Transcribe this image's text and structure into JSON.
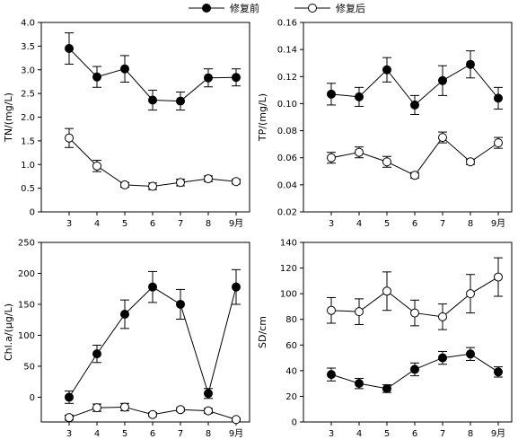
{
  "legend": {
    "placement": "top-center",
    "entries": [
      {
        "label": "修复前",
        "marker": "filled-circle"
      },
      {
        "label": "修复后",
        "marker": "open-circle"
      }
    ]
  },
  "chart_data": [
    {
      "type": "line",
      "panel": "top-left",
      "ylabel": "TN/(mg/L)",
      "xlabel": "",
      "x": [
        3,
        4,
        5,
        6,
        7,
        8,
        9
      ],
      "x_tick_labels": [
        "3",
        "4",
        "5",
        "6",
        "7",
        "8",
        "9月"
      ],
      "ylim": [
        0,
        4.0
      ],
      "y_ticks": [
        0,
        0.5,
        1.0,
        1.5,
        2.0,
        2.5,
        3.0,
        3.5,
        4.0
      ],
      "y_tick_labels": [
        "0",
        "0.5",
        "1.0",
        "1.5",
        "2.0",
        "2.5",
        "3.0",
        "3.5",
        "4.0"
      ],
      "grid": false,
      "series": [
        {
          "name": "修复前",
          "marker": "filled",
          "values": [
            3.45,
            2.85,
            3.02,
            2.36,
            2.34,
            2.83,
            2.84
          ],
          "errors": [
            0.33,
            0.22,
            0.28,
            0.21,
            0.19,
            0.19,
            0.18
          ]
        },
        {
          "name": "修复后",
          "marker": "open",
          "values": [
            1.56,
            0.97,
            0.57,
            0.54,
            0.62,
            0.7,
            0.64
          ],
          "errors": [
            0.2,
            0.12,
            0.05,
            0.07,
            0.07,
            0.06,
            0.05
          ]
        }
      ]
    },
    {
      "type": "line",
      "panel": "top-right",
      "ylabel": "TP/(mg/L)",
      "xlabel": "",
      "x": [
        3,
        4,
        5,
        6,
        7,
        8,
        9
      ],
      "x_tick_labels": [
        "3",
        "4",
        "5",
        "6",
        "7",
        "8",
        "9月"
      ],
      "ylim": [
        0.02,
        0.16
      ],
      "y_ticks": [
        0.02,
        0.04,
        0.06,
        0.08,
        0.1,
        0.12,
        0.14,
        0.16
      ],
      "y_tick_labels": [
        "0.02",
        "0.04",
        "0.06",
        "0.08",
        "0.10",
        "0.12",
        "0.14",
        "0.16"
      ],
      "grid": false,
      "series": [
        {
          "name": "修复前",
          "marker": "filled",
          "values": [
            0.107,
            0.105,
            0.125,
            0.099,
            0.117,
            0.129,
            0.104
          ],
          "errors": [
            0.008,
            0.007,
            0.009,
            0.007,
            0.011,
            0.01,
            0.008
          ]
        },
        {
          "name": "修复后",
          "marker": "open",
          "values": [
            0.06,
            0.064,
            0.057,
            0.047,
            0.075,
            0.057,
            0.071
          ],
          "errors": [
            0.004,
            0.004,
            0.004,
            0.002,
            0.004,
            0.002,
            0.004
          ]
        }
      ]
    },
    {
      "type": "line",
      "panel": "bottom-left",
      "ylabel": "Chl.a/(μg/L)",
      "xlabel": "",
      "x": [
        3,
        4,
        5,
        6,
        7,
        8,
        9
      ],
      "x_tick_labels": [
        "3",
        "4",
        "5",
        "6",
        "7",
        "8",
        "9月"
      ],
      "ylim": [
        -40,
        250
      ],
      "y_ticks": [
        0,
        50,
        100,
        150,
        200,
        250
      ],
      "y_tick_labels": [
        "0",
        "50",
        "100",
        "150",
        "200",
        "250"
      ],
      "grid": false,
      "series": [
        {
          "name": "修复前",
          "marker": "filled",
          "values": [
            0,
            70,
            134,
            178,
            150,
            6,
            178
          ],
          "errors": [
            10,
            14,
            23,
            25,
            24,
            8,
            28
          ]
        },
        {
          "name": "修复后",
          "marker": "open",
          "values": [
            -33,
            -17,
            -16,
            -28,
            -20,
            -22,
            -36
          ],
          "errors": [
            4,
            6,
            6,
            3,
            3,
            4,
            2
          ]
        }
      ]
    },
    {
      "type": "line",
      "panel": "bottom-right",
      "ylabel": "SD/cm",
      "xlabel": "",
      "x": [
        3,
        4,
        5,
        6,
        7,
        8,
        9
      ],
      "x_tick_labels": [
        "3",
        "4",
        "5",
        "6",
        "7",
        "8",
        "9月"
      ],
      "ylim": [
        0,
        140
      ],
      "y_ticks": [
        0,
        20,
        40,
        60,
        80,
        100,
        120,
        140
      ],
      "y_tick_labels": [
        "0",
        "20",
        "40",
        "60",
        "80",
        "100",
        "120",
        "140"
      ],
      "grid": false,
      "series": [
        {
          "name": "修复前",
          "marker": "filled",
          "values": [
            37,
            30,
            26,
            41,
            50,
            53,
            39
          ],
          "errors": [
            5,
            4,
            3,
            5,
            5,
            5,
            4
          ]
        },
        {
          "name": "修复后",
          "marker": "open",
          "values": [
            87,
            86,
            102,
            85,
            82,
            100,
            113
          ],
          "errors": [
            10,
            10,
            15,
            10,
            10,
            15,
            15
          ]
        }
      ]
    }
  ]
}
